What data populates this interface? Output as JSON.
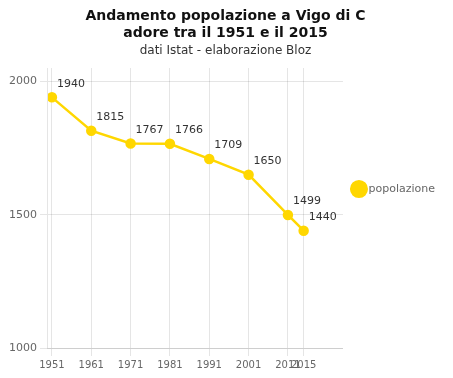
{
  "chart_data": {
    "type": "line",
    "title": [
      "Andamento popolazione a Vigo di C",
      "adore tra il 1951 e il 2015"
    ],
    "subtitle": "dati Istat - elaborazione Bloz",
    "x": [
      1951,
      1961,
      1971,
      1981,
      1991,
      2001,
      2011,
      2015
    ],
    "series": [
      {
        "name": "popolazione",
        "color": "#FFD700",
        "marker": "circle",
        "values": [
          1940,
          1815,
          1767,
          1766,
          1709,
          1650,
          1499,
          1440
        ]
      }
    ],
    "xlim": [
      1950,
      2025
    ],
    "xticks": [
      1951,
      1961,
      1971,
      1981,
      1991,
      2001,
      2011,
      2015
    ],
    "ylim": [
      1000,
      2050
    ],
    "yticks": [
      1000,
      1500,
      2000
    ],
    "grid": true,
    "legend": "right",
    "data_labels": true
  }
}
